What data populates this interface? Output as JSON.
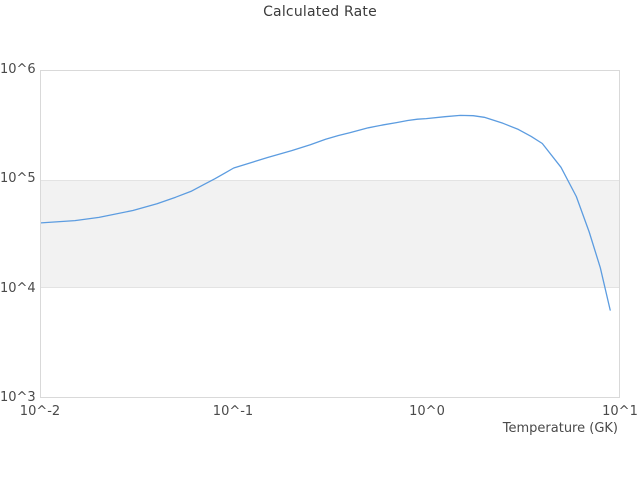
{
  "title": "Calculated Rate",
  "axis": {
    "x_label": "Temperature (GK)",
    "x_tick_labels": [
      "10^-2",
      "10^-1",
      "10^0",
      "10^1"
    ],
    "y_tick_labels": [
      "10^3",
      "10^4",
      "10^5",
      "10^6"
    ]
  },
  "colors": {
    "line": "#5c9ce0",
    "band_fill": "#f2f2f2",
    "band_edge": "#e3e3e3",
    "frame_border": "#d9d9d9",
    "text": "#4a4a4a"
  },
  "chart_data": {
    "type": "line",
    "title": "Calculated Rate",
    "xlabel": "Temperature (GK)",
    "ylabel": "",
    "x_scale": "log",
    "y_scale": "log",
    "xlim": [
      0.01,
      10
    ],
    "ylim": [
      1000,
      1000000
    ],
    "x_tick_labels": [
      "10^-2",
      "10^-1",
      "10^0",
      "10^1"
    ],
    "y_tick_labels": [
      "10^3",
      "10^4",
      "10^5",
      "10^6"
    ],
    "grid": "off",
    "legend": "none",
    "shaded_band": {
      "y_from": 10000,
      "y_to": 100000
    },
    "series": [
      {
        "name": "calculated rate",
        "color": "#5c9ce0",
        "x": [
          0.01,
          0.015,
          0.02,
          0.03,
          0.04,
          0.05,
          0.06,
          0.07,
          0.08,
          0.09,
          0.1,
          0.15,
          0.2,
          0.25,
          0.3,
          0.35,
          0.4,
          0.5,
          0.6,
          0.7,
          0.8,
          0.9,
          1.0,
          1.25,
          1.5,
          1.75,
          2.0,
          2.5,
          3.0,
          3.5,
          4.0,
          5.0,
          6.0,
          7.0,
          8.0,
          9.0
        ],
        "y": [
          40000,
          42000,
          45000,
          52000,
          60000,
          69000,
          78000,
          90000,
          102000,
          115000,
          128000,
          160000,
          185000,
          210000,
          235000,
          255000,
          270000,
          300000,
          320000,
          335000,
          350000,
          360000,
          365000,
          380000,
          390000,
          388000,
          375000,
          330000,
          290000,
          250000,
          215000,
          130000,
          70000,
          33000,
          15500,
          6300
        ]
      }
    ]
  }
}
